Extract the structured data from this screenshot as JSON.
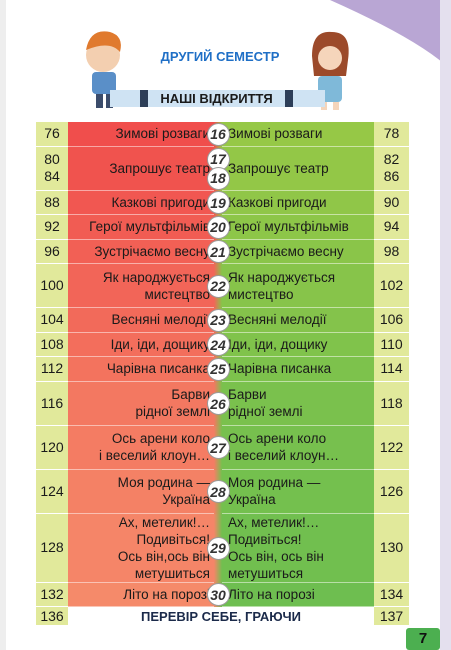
{
  "header": {
    "title": "ДРУГИЙ СЕМЕСТР",
    "subtitle": "НАШІ ВІДКРИТТЯ"
  },
  "rows": [
    {
      "left_pages": [
        76
      ],
      "left_title": [
        "Зимові розваги"
      ],
      "lessons": [
        16
      ],
      "right_title": [
        "Зимові розваги"
      ],
      "right_pages": [
        78
      ]
    },
    {
      "left_pages": [
        80,
        84
      ],
      "left_title": [
        "Запрошує театр"
      ],
      "lessons": [
        17,
        18
      ],
      "right_title": [
        "Запрошує театр"
      ],
      "right_pages": [
        82,
        86
      ]
    },
    {
      "left_pages": [
        88
      ],
      "left_title": [
        "Казкові пригоди"
      ],
      "lessons": [
        19
      ],
      "right_title": [
        "Казкові пригоди"
      ],
      "right_pages": [
        90
      ]
    },
    {
      "left_pages": [
        92
      ],
      "left_title": [
        "Герої мультфільмів"
      ],
      "lessons": [
        20
      ],
      "right_title": [
        "Герої мультфільмів"
      ],
      "right_pages": [
        94
      ]
    },
    {
      "left_pages": [
        96
      ],
      "left_title": [
        "Зустрічаємо весну"
      ],
      "lessons": [
        21
      ],
      "right_title": [
        "Зустрічаємо весну"
      ],
      "right_pages": [
        98
      ]
    },
    {
      "left_pages": [
        100
      ],
      "left_title": [
        "Як народжується",
        "мистецтво"
      ],
      "lessons": [
        22
      ],
      "right_title": [
        "Як народжується",
        "мистецтво"
      ],
      "right_pages": [
        102
      ]
    },
    {
      "left_pages": [
        104
      ],
      "left_title": [
        "Весняні мелодії"
      ],
      "lessons": [
        23
      ],
      "right_title": [
        "Весняні мелодії"
      ],
      "right_pages": [
        106
      ]
    },
    {
      "left_pages": [
        108
      ],
      "left_title": [
        "Іди, іди, дощику"
      ],
      "lessons": [
        24
      ],
      "right_title": [
        "Іди, іди, дощику"
      ],
      "right_pages": [
        110
      ]
    },
    {
      "left_pages": [
        112
      ],
      "left_title": [
        "Чарівна писанка"
      ],
      "lessons": [
        25
      ],
      "right_title": [
        "Чарівна писанка"
      ],
      "right_pages": [
        114
      ]
    },
    {
      "left_pages": [
        116
      ],
      "left_title": [
        "Барви",
        "рідної землі"
      ],
      "lessons": [
        26
      ],
      "right_title": [
        "Барви",
        "рідної землі"
      ],
      "right_pages": [
        118
      ]
    },
    {
      "left_pages": [
        120
      ],
      "left_title": [
        "Ось арени коло",
        "і веселий клоун…"
      ],
      "lessons": [
        27
      ],
      "right_title": [
        "Ось арени коло",
        "і веселий клоун…"
      ],
      "right_pages": [
        122
      ]
    },
    {
      "left_pages": [
        124
      ],
      "left_title": [
        "Моя родина —",
        "Україна"
      ],
      "lessons": [
        28
      ],
      "right_title": [
        "Моя родина —",
        "Україна"
      ],
      "right_pages": [
        126
      ]
    },
    {
      "left_pages": [
        128
      ],
      "left_title": [
        "Ах, метелик!…",
        "Подивіться!",
        "Ось він,ось він",
        "метушиться"
      ],
      "lessons": [
        29
      ],
      "right_title": [
        "Ах, метелик!…",
        "Подивіться!",
        "Ось він, ось він",
        "метушиться"
      ],
      "right_pages": [
        130
      ]
    },
    {
      "left_pages": [
        132
      ],
      "left_title": [
        "Літо на порозі"
      ],
      "lessons": [
        30
      ],
      "right_title": [
        "Літо на порозі"
      ],
      "right_pages": [
        134
      ]
    }
  ],
  "footer_row": {
    "left_page": 136,
    "title": "ПЕРЕВІР СЕБЕ, ГРАЮЧИ",
    "right_page": 137
  },
  "page_number": 7
}
